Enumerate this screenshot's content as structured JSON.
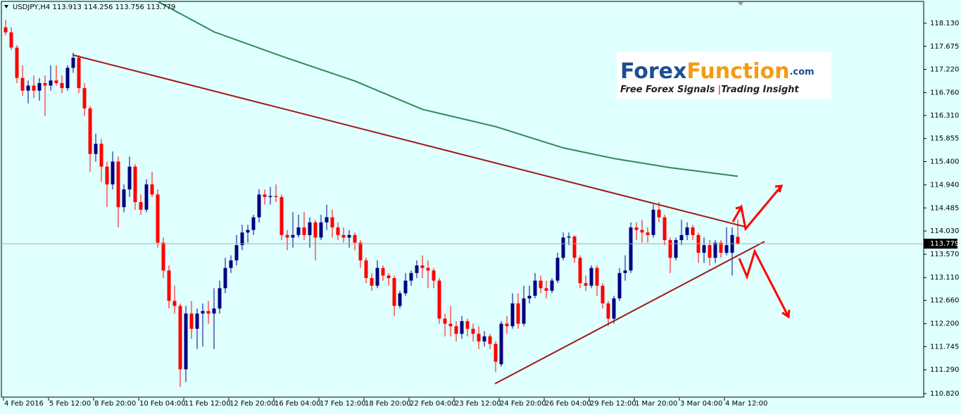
{
  "header": "USDJPY,H4  113.913 114.256 113.756 113.779",
  "logo": {
    "brand_1": "Forex",
    "brand_2": "Function",
    "brand_3": ".com",
    "tagline_1": "Free Forex Signals",
    "tagline_2": "Trading Insight"
  },
  "chart_data": {
    "type": "candlestick",
    "up_color": "#000080",
    "down_color": "#ff0000",
    "ylim": [
      110.737,
      118.589
    ],
    "yticks": [
      {
        "value": 118.13,
        "label": "118.130"
      },
      {
        "value": 117.675,
        "label": "117.675"
      },
      {
        "value": 117.22,
        "label": "117.220"
      },
      {
        "value": 116.76,
        "label": "116.760"
      },
      {
        "value": 116.31,
        "label": "116.310"
      },
      {
        "value": 115.855,
        "label": "115.855"
      },
      {
        "value": 115.4,
        "label": "115.400"
      },
      {
        "value": 114.94,
        "label": "114.940"
      },
      {
        "value": 114.485,
        "label": "114.485"
      },
      {
        "value": 114.03,
        "label": "114.030"
      },
      {
        "value": 113.57,
        "label": "113.570"
      },
      {
        "value": 113.11,
        "label": "113.110"
      },
      {
        "value": 112.66,
        "label": "112.660"
      },
      {
        "value": 112.2,
        "label": "112.200"
      },
      {
        "value": 111.745,
        "label": "111.745"
      },
      {
        "value": 111.29,
        "label": "111.290"
      },
      {
        "value": 110.82,
        "label": "110.820"
      }
    ],
    "current_price": {
      "value": 113.779,
      "label": "113.779"
    },
    "categories": [
      "4 Feb 2016",
      null,
      null,
      null,
      null,
      null,
      null,
      null,
      "5 Feb 12:00",
      null,
      null,
      null,
      null,
      null,
      null,
      null,
      "8 Feb 20:00",
      null,
      null,
      null,
      null,
      null,
      null,
      null,
      "10 Feb 04:00",
      null,
      null,
      null,
      null,
      null,
      null,
      null,
      "11 Feb 12:00",
      null,
      null,
      null,
      null,
      null,
      null,
      null,
      "12 Feb 20:00",
      null,
      null,
      null,
      null,
      null,
      null,
      null,
      "16 Feb 04:00",
      null,
      null,
      null,
      null,
      null,
      null,
      null,
      "17 Feb 12:00",
      null,
      null,
      null,
      null,
      null,
      null,
      null,
      "18 Feb 20:00",
      null,
      null,
      null,
      null,
      null,
      null,
      null,
      "22 Feb 04:00",
      null,
      null,
      null,
      null,
      null,
      null,
      null,
      "23 Feb 12:00",
      null,
      null,
      null,
      null,
      null,
      null,
      null,
      "24 Feb 20:00",
      null,
      null,
      null,
      null,
      null,
      null,
      null,
      "26 Feb 04:00",
      null,
      null,
      null,
      null,
      null,
      null,
      null,
      "29 Feb 12:00",
      null,
      null,
      null,
      null,
      null,
      null,
      null,
      "1 Mar 20:00",
      null,
      null,
      null,
      null,
      null,
      null,
      null,
      "3 Mar 04:00",
      null,
      null,
      null,
      null,
      null,
      null,
      null,
      "4 Mar 12:00",
      null,
      null
    ],
    "ohlc": [
      [
        118.05,
        118.2,
        117.9,
        117.95
      ],
      [
        117.95,
        118.05,
        117.6,
        117.65
      ],
      [
        117.65,
        117.7,
        116.95,
        117.05
      ],
      [
        117.05,
        117.3,
        116.7,
        116.8
      ],
      [
        116.8,
        117.0,
        116.55,
        116.9
      ],
      [
        116.9,
        117.1,
        116.65,
        116.8
      ],
      [
        116.8,
        117.05,
        116.6,
        116.95
      ],
      [
        116.95,
        117.1,
        116.3,
        116.9
      ],
      [
        116.9,
        117.3,
        116.8,
        117.0
      ],
      [
        117.0,
        117.3,
        116.9,
        116.95
      ],
      [
        116.95,
        117.1,
        116.75,
        116.85
      ],
      [
        116.85,
        117.3,
        116.8,
        117.25
      ],
      [
        117.25,
        117.55,
        117.15,
        117.45
      ],
      [
        117.45,
        117.5,
        116.75,
        116.85
      ],
      [
        116.85,
        116.95,
        116.3,
        116.45
      ],
      [
        116.45,
        116.5,
        115.2,
        115.55
      ],
      [
        115.55,
        115.95,
        115.4,
        115.75
      ],
      [
        115.75,
        115.85,
        115.0,
        115.3
      ],
      [
        115.3,
        115.4,
        114.5,
        114.95
      ],
      [
        114.95,
        115.6,
        114.85,
        115.4
      ],
      [
        115.4,
        115.5,
        114.1,
        114.5
      ],
      [
        114.5,
        114.95,
        114.4,
        114.85
      ],
      [
        114.85,
        115.5,
        114.7,
        115.3
      ],
      [
        115.3,
        115.35,
        114.45,
        114.6
      ],
      [
        114.6,
        114.75,
        114.35,
        114.45
      ],
      [
        114.45,
        115.05,
        114.4,
        114.95
      ],
      [
        114.95,
        115.2,
        114.7,
        114.75
      ],
      [
        114.75,
        114.85,
        113.7,
        113.8
      ],
      [
        113.8,
        113.9,
        113.1,
        113.25
      ],
      [
        113.25,
        113.35,
        112.5,
        112.65
      ],
      [
        112.65,
        112.95,
        112.4,
        112.55
      ],
      [
        112.55,
        112.6,
        110.95,
        111.3
      ],
      [
        111.3,
        112.55,
        111.05,
        112.4
      ],
      [
        112.4,
        112.65,
        111.9,
        112.1
      ],
      [
        112.1,
        112.5,
        111.7,
        112.4
      ],
      [
        112.4,
        112.6,
        111.75,
        112.45
      ],
      [
        112.45,
        112.65,
        112.2,
        112.4
      ],
      [
        112.4,
        112.9,
        111.7,
        112.5
      ],
      [
        112.5,
        113.05,
        112.4,
        112.9
      ],
      [
        112.9,
        113.5,
        112.8,
        113.3
      ],
      [
        113.3,
        113.55,
        113.2,
        113.45
      ],
      [
        113.45,
        113.95,
        113.35,
        113.75
      ],
      [
        113.75,
        114.15,
        113.65,
        114.0
      ],
      [
        114.0,
        114.15,
        113.8,
        114.05
      ],
      [
        114.05,
        114.35,
        113.95,
        114.3
      ],
      [
        114.3,
        114.85,
        114.2,
        114.75
      ],
      [
        114.75,
        114.85,
        114.55,
        114.7
      ],
      [
        114.7,
        114.9,
        114.55,
        114.72
      ],
      [
        114.72,
        114.95,
        114.6,
        114.7
      ],
      [
        114.7,
        114.75,
        113.85,
        113.95
      ],
      [
        113.95,
        114.05,
        113.65,
        113.9
      ],
      [
        113.9,
        114.4,
        113.7,
        113.95
      ],
      [
        113.95,
        114.35,
        113.9,
        114.1
      ],
      [
        114.1,
        114.4,
        113.85,
        113.95
      ],
      [
        113.95,
        114.3,
        113.7,
        114.2
      ],
      [
        114.2,
        114.25,
        113.45,
        113.9
      ],
      [
        113.9,
        114.35,
        113.85,
        114.2
      ],
      [
        114.2,
        114.55,
        114.05,
        114.3
      ],
      [
        114.3,
        114.45,
        113.9,
        114.1
      ],
      [
        114.1,
        114.2,
        113.85,
        113.95
      ],
      [
        113.95,
        114.1,
        113.8,
        113.9
      ],
      [
        113.9,
        114.05,
        113.7,
        113.95
      ],
      [
        113.95,
        114.0,
        113.65,
        113.8
      ],
      [
        113.8,
        113.85,
        113.3,
        113.45
      ],
      [
        113.45,
        113.5,
        113.0,
        113.1
      ],
      [
        113.1,
        113.2,
        112.85,
        112.95
      ],
      [
        112.95,
        113.45,
        112.9,
        113.3
      ],
      [
        113.3,
        113.35,
        113.05,
        113.15
      ],
      [
        113.15,
        113.2,
        112.95,
        113.1
      ],
      [
        113.1,
        113.15,
        112.35,
        112.55
      ],
      [
        112.55,
        112.85,
        112.5,
        112.8
      ],
      [
        112.8,
        113.2,
        112.75,
        113.05
      ],
      [
        113.05,
        113.25,
        112.95,
        113.2
      ],
      [
        113.2,
        113.45,
        113.1,
        113.35
      ],
      [
        113.35,
        113.55,
        113.1,
        113.3
      ],
      [
        113.3,
        113.45,
        112.9,
        113.25
      ],
      [
        113.25,
        113.3,
        112.9,
        113.05
      ],
      [
        113.05,
        113.1,
        112.2,
        112.3
      ],
      [
        112.3,
        112.4,
        111.95,
        112.2
      ],
      [
        112.2,
        112.55,
        111.95,
        112.15
      ],
      [
        112.15,
        112.25,
        111.85,
        112.0
      ],
      [
        112.0,
        112.35,
        111.9,
        112.25
      ],
      [
        112.25,
        112.3,
        111.95,
        112.1
      ],
      [
        112.1,
        112.2,
        111.85,
        112.0
      ],
      [
        112.0,
        112.15,
        111.7,
        111.85
      ],
      [
        111.85,
        112.05,
        111.75,
        111.95
      ],
      [
        111.95,
        112.0,
        111.7,
        111.8
      ],
      [
        111.8,
        111.85,
        111.25,
        111.45
      ],
      [
        111.4,
        112.25,
        111.35,
        112.2
      ],
      [
        112.2,
        112.35,
        112.0,
        112.15
      ],
      [
        112.15,
        112.8,
        112.1,
        112.6
      ],
      [
        112.6,
        112.8,
        112.1,
        112.2
      ],
      [
        112.2,
        112.95,
        112.15,
        112.7
      ],
      [
        112.7,
        112.95,
        112.6,
        112.75
      ],
      [
        112.75,
        113.2,
        112.7,
        113.05
      ],
      [
        113.05,
        113.15,
        112.8,
        112.9
      ],
      [
        112.9,
        113.05,
        112.7,
        112.85
      ],
      [
        112.85,
        113.1,
        112.8,
        113.05
      ],
      [
        113.05,
        113.6,
        113.0,
        113.5
      ],
      [
        113.5,
        114.0,
        113.45,
        113.9
      ],
      [
        113.9,
        114.0,
        113.75,
        113.92
      ],
      [
        113.92,
        113.95,
        113.4,
        113.5
      ],
      [
        113.5,
        113.55,
        112.9,
        113.0
      ],
      [
        113.0,
        113.15,
        112.85,
        112.95
      ],
      [
        112.95,
        113.35,
        112.9,
        113.3
      ],
      [
        113.3,
        113.35,
        112.75,
        112.95
      ],
      [
        112.95,
        113.0,
        112.5,
        112.6
      ],
      [
        112.6,
        112.65,
        112.15,
        112.3
      ],
      [
        112.3,
        112.75,
        112.2,
        112.7
      ],
      [
        112.7,
        113.3,
        112.65,
        113.2
      ],
      [
        113.2,
        113.55,
        113.05,
        113.25
      ],
      [
        113.25,
        114.2,
        113.2,
        114.1
      ],
      [
        114.1,
        114.2,
        113.85,
        114.05
      ],
      [
        114.05,
        114.25,
        113.8,
        114.0
      ],
      [
        114.0,
        114.1,
        113.8,
        113.95
      ],
      [
        113.95,
        114.55,
        113.9,
        114.45
      ],
      [
        114.45,
        114.6,
        114.2,
        114.3
      ],
      [
        114.3,
        114.35,
        113.75,
        113.85
      ],
      [
        113.85,
        113.9,
        113.2,
        113.5
      ],
      [
        113.5,
        113.9,
        113.45,
        113.85
      ],
      [
        113.85,
        114.25,
        113.75,
        113.95
      ],
      [
        113.95,
        114.2,
        113.85,
        114.1
      ],
      [
        114.1,
        114.15,
        113.85,
        113.95
      ],
      [
        113.95,
        114.0,
        113.4,
        113.6
      ],
      [
        113.6,
        113.9,
        113.4,
        113.75
      ],
      [
        113.75,
        113.85,
        113.35,
        113.5
      ],
      [
        113.5,
        113.85,
        113.4,
        113.8
      ],
      [
        113.8,
        113.85,
        113.5,
        113.6
      ],
      [
        113.6,
        114.1,
        113.55,
        113.75
      ],
      [
        113.6,
        114.1,
        113.15,
        113.95
      ],
      [
        113.913,
        114.256,
        113.756,
        113.779
      ]
    ],
    "moving_average": {
      "color": "#2e8b57",
      "x": [
        27,
        37,
        49,
        62,
        74,
        87,
        99,
        108,
        118,
        130
      ],
      "values": [
        118.56,
        117.96,
        117.48,
        116.99,
        116.43,
        116.09,
        115.67,
        115.46,
        115.28,
        115.11
      ]
    }
  }
}
